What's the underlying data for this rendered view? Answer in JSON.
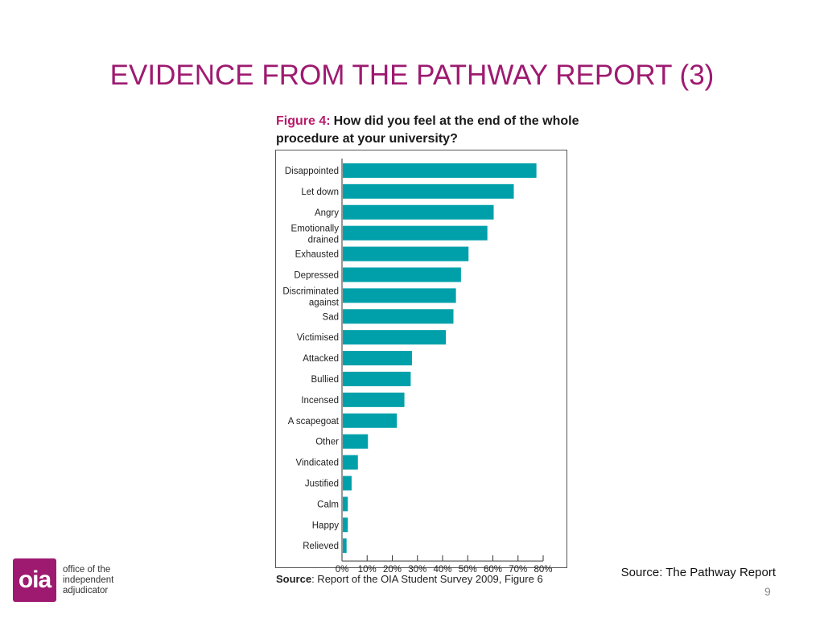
{
  "slide": {
    "title": "EVIDENCE FROM THE PATHWAY REPORT (3)",
    "source_note": "Source: The Pathway Report",
    "page_number": "9"
  },
  "figure": {
    "label": "Figure 4:",
    "heading": "How did you feel at the end of the whole procedure at your university?",
    "source_label": "Source",
    "source_text": ": Report of the OIA Student Survey 2009, Figure 6"
  },
  "logo": {
    "mark": "oia",
    "lines": [
      "office of the",
      "independent",
      "adjudicator"
    ]
  },
  "colors": {
    "title": "#9e1a70",
    "bar": "#00a0aa",
    "logo": "#9e1a70"
  },
  "chart_data": {
    "type": "bar",
    "orientation": "horizontal",
    "categories": [
      "Disappointed",
      "Let down",
      "Angry",
      "Emotionally drained",
      "Exhausted",
      "Depressed",
      "Discriminated against",
      "Sad",
      "Victimised",
      "Attacked",
      "Bullied",
      "Incensed",
      "A scapegoat",
      "Other",
      "Vindicated",
      "Justified",
      "Calm",
      "Happy",
      "Relieved"
    ],
    "values": [
      77,
      68,
      60,
      57.5,
      50,
      47,
      45,
      44,
      41,
      27.5,
      27,
      24.5,
      21.5,
      10,
      6,
      3.5,
      2,
      2,
      1.5
    ],
    "x_ticks": [
      "0%",
      "10%",
      "20%",
      "30%",
      "40%",
      "50%",
      "60%",
      "70%",
      "80%"
    ],
    "xlim": [
      0,
      80
    ],
    "grid": false,
    "legend": "none"
  }
}
